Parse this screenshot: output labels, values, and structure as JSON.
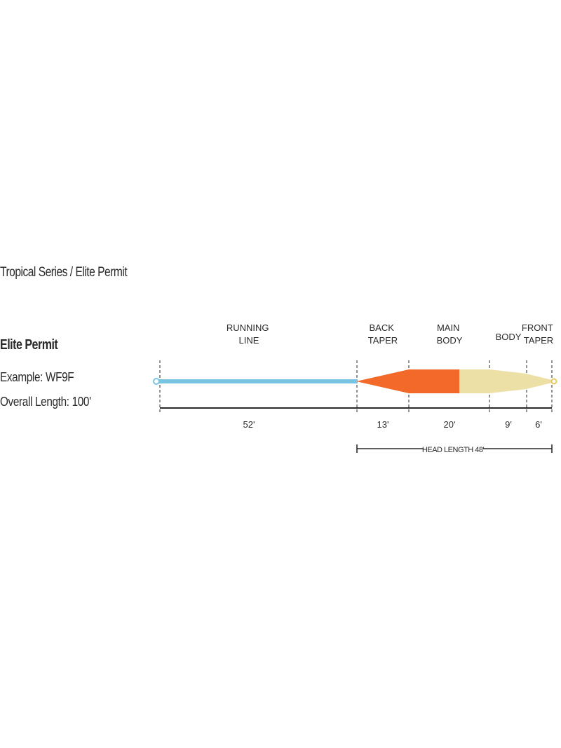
{
  "header": {
    "series_title": "Tropical Series / Elite Permit"
  },
  "info": {
    "line_name": "Elite Permit",
    "example": "Example: WF9F",
    "overall_length": "Overall Length: 100'"
  },
  "sections": [
    {
      "id": "running-line",
      "label_lines": [
        "RUNNING",
        "LINE"
      ],
      "length": "52'",
      "color": "#79c4e3"
    },
    {
      "id": "back-taper",
      "label_lines": [
        "BACK",
        "TAPER"
      ],
      "length": "13'",
      "color": "#f2692a"
    },
    {
      "id": "main-body",
      "label_lines": [
        "MAIN",
        "BODY"
      ],
      "length": "20'",
      "color": "#f2692a"
    },
    {
      "id": "body",
      "label_lines": [
        "BODY"
      ],
      "length": "9'",
      "color": "#ede0a6"
    },
    {
      "id": "front-taper",
      "label_lines": [
        "FRONT",
        "TAPER"
      ],
      "length": "6'",
      "color": "#ede0a6"
    }
  ],
  "head_length": "HEAD LENGTH 48'",
  "colors": {
    "running_line": "#79c4e3",
    "head_orange": "#f2692a",
    "head_tan": "#ede0a6",
    "text": "#2a2a2a"
  }
}
